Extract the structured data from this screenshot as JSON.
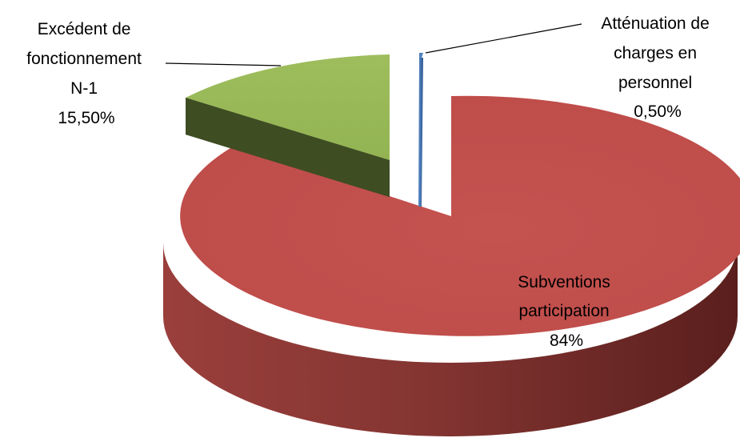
{
  "chart_data": {
    "type": "pie",
    "style": "3d-exploded",
    "categories": [
      "Subventions participation",
      "Excédent de fonctionnement N-1",
      "Atténuation de charges en personnel"
    ],
    "values": [
      84,
      15.5,
      0.5
    ],
    "value_labels": [
      "84%",
      "15,50%",
      "0,50%"
    ],
    "label_lines": [
      [
        "Subventions",
        "participation"
      ],
      [
        "Excédent de",
        "fonctionnement",
        "N-1"
      ],
      [
        "Atténuation de",
        "charges en",
        "personnel"
      ]
    ],
    "colors": [
      "#C0504D",
      "#9BBB59",
      "#4F81BD"
    ],
    "side_colors": [
      "#7A2E2B",
      "#3B4A21",
      "#2E4F7C"
    ],
    "legend": "none"
  }
}
